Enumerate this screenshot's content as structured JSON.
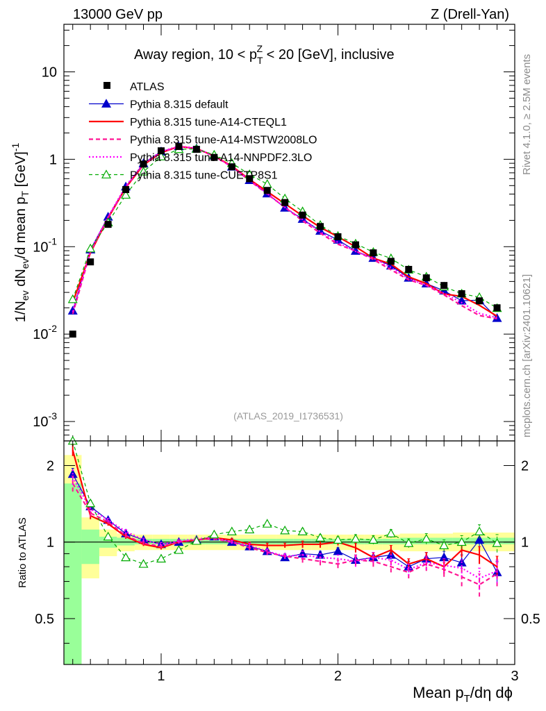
{
  "header": {
    "left": "13000 GeV pp",
    "right": "Z (Drell-Yan)"
  },
  "side_labels": {
    "rivet": "Rivet 4.1.0, ≥ 2.5M events",
    "mcplots": "mcplots.cern.ch [arXiv:2401.10621]"
  },
  "chart_data": {
    "type": "line",
    "title": "Away region, 10 < p_T^Z < 20 [GeV], inclusive",
    "title_parts": {
      "pre": "Away region, 10 < p",
      "sub": "T",
      "sup": "Z",
      "post": " < 20 [GeV], inclusive"
    },
    "watermark": "(ATLAS_2019_I1736531)",
    "xlabel": "Mean p_T/dη dϕ",
    "xlabel_parts": {
      "main": "Mean p",
      "sub": "T",
      "rest": "/dη dϕ"
    },
    "ylabel": "1/N_ev dN_ev/d mean p_T [GeV]^-1",
    "ylabel_parts": {
      "a": "1/N",
      "a_sub": "ev",
      "b": " dN",
      "b_sub": "ev",
      "c": "/d mean p",
      "c_sub": "T",
      "d": " [GeV]",
      "d_sup": "-1"
    },
    "ratio_ylabel": "Ratio to ATLAS",
    "xlim": [
      0.45,
      3.0
    ],
    "ylim": [
      0.0006,
      35
    ],
    "yscale": "log",
    "ratio_ylim": [
      0.33,
      2.5
    ],
    "ratio_yscale": "log",
    "x_ticks": [
      1,
      2,
      3
    ],
    "x_tick_labels": [
      "1",
      "2",
      "3"
    ],
    "y_ticks": [
      {
        "value": 0.001,
        "base": "10",
        "exp": "-3"
      },
      {
        "value": 0.01,
        "base": "10",
        "exp": "-2"
      },
      {
        "value": 0.1,
        "base": "10",
        "exp": "-1"
      },
      {
        "value": 1,
        "base": "1",
        "exp": ""
      },
      {
        "value": 10,
        "base": "10",
        "exp": ""
      }
    ],
    "ratio_ticks": [
      {
        "value": 0.5,
        "label": "0.5"
      },
      {
        "value": 1,
        "label": "1"
      },
      {
        "value": 2,
        "label": "2"
      }
    ],
    "x": [
      0.5,
      0.6,
      0.7,
      0.8,
      0.9,
      1.0,
      1.1,
      1.2,
      1.3,
      1.4,
      1.5,
      1.6,
      1.7,
      1.8,
      1.9,
      2.0,
      2.1,
      2.2,
      2.3,
      2.4,
      2.5,
      2.6,
      2.7,
      2.8,
      2.9
    ],
    "band_edges": [
      0.45,
      0.55,
      0.65,
      0.75,
      0.85,
      0.95,
      1.05,
      1.15,
      1.25,
      1.35,
      1.45,
      1.55,
      1.65,
      1.75,
      1.85,
      1.95,
      2.05,
      2.15,
      2.25,
      2.35,
      2.45,
      2.55,
      2.65,
      2.75,
      2.85,
      3.0
    ],
    "stat_band": [
      [
        0.3,
        1.7
      ],
      [
        0.82,
        1.12
      ],
      [
        0.95,
        1.05
      ],
      [
        0.97,
        1.04
      ],
      [
        0.98,
        1.03
      ],
      [
        0.98,
        1.03
      ],
      [
        0.98,
        1.03
      ],
      [
        0.98,
        1.03
      ],
      [
        0.98,
        1.03
      ],
      [
        0.98,
        1.03
      ],
      [
        0.98,
        1.03
      ],
      [
        0.98,
        1.03
      ],
      [
        0.98,
        1.03
      ],
      [
        0.98,
        1.03
      ],
      [
        0.98,
        1.03
      ],
      [
        0.98,
        1.03
      ],
      [
        0.98,
        1.03
      ],
      [
        0.98,
        1.03
      ],
      [
        0.98,
        1.03
      ],
      [
        0.98,
        1.04
      ],
      [
        0.98,
        1.04
      ],
      [
        0.98,
        1.04
      ],
      [
        0.98,
        1.04
      ],
      [
        0.98,
        1.04
      ],
      [
        0.98,
        1.04
      ]
    ],
    "syst_band": [
      [
        0.3,
        2.2
      ],
      [
        0.72,
        1.25
      ],
      [
        0.88,
        1.12
      ],
      [
        0.92,
        1.08
      ],
      [
        0.93,
        1.07
      ],
      [
        0.93,
        1.07
      ],
      [
        0.93,
        1.07
      ],
      [
        0.93,
        1.07
      ],
      [
        0.93,
        1.07
      ],
      [
        0.93,
        1.07
      ],
      [
        0.93,
        1.07
      ],
      [
        0.93,
        1.07
      ],
      [
        0.93,
        1.07
      ],
      [
        0.93,
        1.07
      ],
      [
        0.93,
        1.07
      ],
      [
        0.93,
        1.07
      ],
      [
        0.93,
        1.07
      ],
      [
        0.93,
        1.07
      ],
      [
        0.93,
        1.07
      ],
      [
        0.92,
        1.08
      ],
      [
        0.92,
        1.08
      ],
      [
        0.92,
        1.08
      ],
      [
        0.92,
        1.09
      ],
      [
        0.92,
        1.09
      ],
      [
        0.92,
        1.09
      ]
    ],
    "data_series": {
      "name": "ATLAS",
      "color": "#000000",
      "x": [
        0.5,
        0.6,
        0.7,
        0.8,
        0.9,
        1.0,
        1.1,
        1.2,
        1.3,
        1.4,
        1.5,
        1.6,
        1.7,
        1.8,
        1.9,
        2.0,
        2.1,
        2.2,
        2.3,
        2.4,
        2.5,
        2.6,
        2.7,
        2.8,
        2.9
      ],
      "values": [
        0.01,
        0.067,
        0.18,
        0.45,
        0.88,
        1.25,
        1.4,
        1.3,
        1.05,
        0.82,
        0.6,
        0.44,
        0.32,
        0.23,
        0.17,
        0.13,
        0.105,
        0.085,
        0.068,
        0.055,
        0.044,
        0.036,
        0.029,
        0.024,
        0.02
      ]
    },
    "series": [
      {
        "name": "Pythia 8.315 default",
        "color": "#0000cc",
        "dash": "",
        "width": 1.2,
        "marker": "triangle",
        "filled": true,
        "ratio": [
          1.85,
          1.38,
          1.22,
          1.08,
          1.02,
          0.98,
          1.0,
          1.02,
          1.05,
          1.0,
          0.96,
          0.92,
          0.87,
          0.9,
          0.89,
          0.92,
          0.85,
          0.87,
          0.89,
          0.8,
          0.86,
          0.87,
          0.83,
          1.02,
          0.76
        ],
        "ratio_err": [
          0.1,
          0.04,
          0.02,
          0.02,
          0.015,
          0.015,
          0.015,
          0.015,
          0.015,
          0.015,
          0.02,
          0.02,
          0.02,
          0.03,
          0.03,
          0.03,
          0.04,
          0.04,
          0.04,
          0.04,
          0.05,
          0.05,
          0.06,
          0.07,
          0.08
        ]
      },
      {
        "name": "Pythia 8.315 tune-A14-CTEQL1",
        "color": "#ff0000",
        "dash": "",
        "width": 2.2,
        "marker": "none",
        "filled": false,
        "ratio": [
          2.3,
          1.27,
          1.18,
          1.05,
          0.98,
          0.95,
          1.0,
          1.02,
          1.04,
          1.02,
          0.98,
          0.97,
          0.97,
          0.98,
          0.98,
          1.0,
          0.95,
          0.87,
          0.93,
          0.82,
          0.86,
          0.8,
          0.93,
          0.89,
          0.8
        ],
        "ratio_err": [
          0.12,
          0.04,
          0.02,
          0.02,
          0.015,
          0.015,
          0.015,
          0.015,
          0.015,
          0.015,
          0.02,
          0.02,
          0.02,
          0.03,
          0.03,
          0.03,
          0.04,
          0.04,
          0.04,
          0.04,
          0.05,
          0.05,
          0.06,
          0.07,
          0.08
        ]
      },
      {
        "name": "Pythia 8.315 tune-A14-MSTW2008LO",
        "color": "#ff1493",
        "dash": "6,4",
        "width": 2.2,
        "marker": "none",
        "filled": false,
        "ratio": [
          1.7,
          1.3,
          1.2,
          1.06,
          0.99,
          0.96,
          1.0,
          1.02,
          1.03,
          1.0,
          0.95,
          0.91,
          0.88,
          0.86,
          0.84,
          0.82,
          0.85,
          0.84,
          0.8,
          0.76,
          0.82,
          0.78,
          0.73,
          0.68,
          0.75
        ],
        "ratio_err": [
          0.12,
          0.04,
          0.02,
          0.02,
          0.015,
          0.015,
          0.015,
          0.015,
          0.015,
          0.015,
          0.02,
          0.02,
          0.02,
          0.03,
          0.03,
          0.03,
          0.04,
          0.04,
          0.04,
          0.04,
          0.05,
          0.05,
          0.06,
          0.07,
          0.08
        ]
      },
      {
        "name": "Pythia 8.315 tune-A14-NNPDF2.3LO",
        "color": "#ff00ff",
        "dash": "2,3",
        "width": 2.2,
        "marker": "none",
        "filled": false,
        "ratio": [
          1.8,
          1.35,
          1.22,
          1.1,
          1.02,
          0.98,
          1.01,
          1.03,
          1.04,
          1.0,
          0.97,
          0.92,
          0.88,
          0.89,
          0.87,
          0.86,
          0.84,
          0.87,
          0.85,
          0.78,
          0.83,
          0.81,
          0.79,
          0.72,
          0.77
        ],
        "ratio_err": [
          0.12,
          0.04,
          0.02,
          0.02,
          0.015,
          0.015,
          0.015,
          0.015,
          0.015,
          0.015,
          0.02,
          0.02,
          0.02,
          0.03,
          0.03,
          0.03,
          0.04,
          0.04,
          0.04,
          0.04,
          0.05,
          0.05,
          0.06,
          0.07,
          0.08
        ]
      },
      {
        "name": "Pythia 8.315 tune-CUETP8S1",
        "color": "#00aa00",
        "dash": "5,4",
        "width": 1.2,
        "marker": "triangle",
        "filled": false,
        "ratio": [
          2.5,
          1.42,
          1.05,
          0.87,
          0.82,
          0.86,
          0.93,
          1.01,
          1.07,
          1.1,
          1.12,
          1.18,
          1.11,
          1.1,
          1.04,
          1.02,
          1.03,
          1.02,
          1.08,
          0.99,
          1.03,
          0.97,
          1.0,
          1.1,
          0.99
        ],
        "ratio_err": [
          0.12,
          0.04,
          0.02,
          0.02,
          0.015,
          0.015,
          0.015,
          0.015,
          0.015,
          0.015,
          0.02,
          0.02,
          0.02,
          0.03,
          0.03,
          0.03,
          0.04,
          0.04,
          0.04,
          0.04,
          0.05,
          0.05,
          0.06,
          0.07,
          0.08
        ]
      }
    ],
    "legend_position": "top-left"
  }
}
